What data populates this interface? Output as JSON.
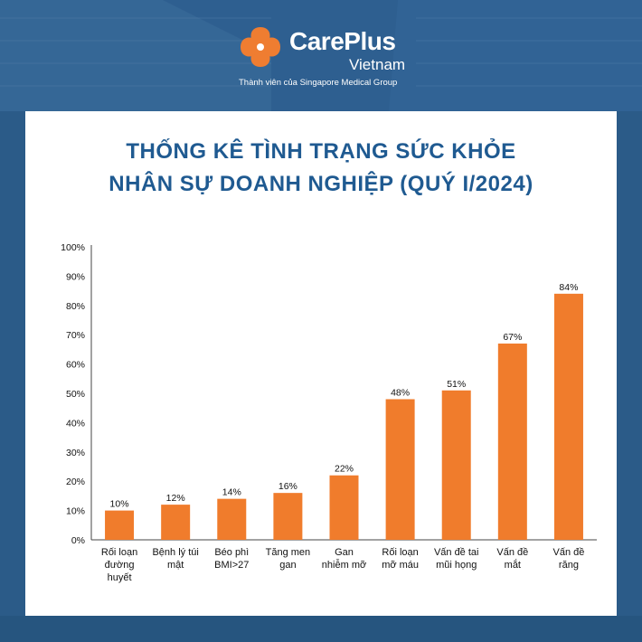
{
  "logo": {
    "brand": "CarePlus",
    "brand_sub": "Vietnam",
    "tagline": "Thành viên của Singapore Medical Group",
    "icon": "careplus-flower-logo-icon",
    "brand_color": "#ef7d31"
  },
  "title_lines": [
    "THỐNG KÊ TÌNH TRẠNG SỨC KHỎE",
    "NHÂN SỰ DOANH NGHIỆP (QUÝ I/2024)"
  ],
  "chart_data": {
    "type": "bar",
    "title": "THỐNG KÊ TÌNH TRẠNG SỨC KHỎE NHÂN SỰ DOANH NGHIỆP (QUÝ I/2024)",
    "categories": [
      [
        "Rối loạn",
        "đường",
        "huyết"
      ],
      [
        "Bệnh lý túi",
        "mật"
      ],
      [
        "Béo phì",
        "BMI>27"
      ],
      [
        "Tăng men",
        "gan"
      ],
      [
        "Gan",
        "nhiễm mỡ"
      ],
      [
        "Rối loạn",
        "mỡ máu"
      ],
      [
        "Vấn đề tai",
        "mũi họng"
      ],
      [
        "Vấn đề",
        "mắt"
      ],
      [
        "Vấn đề",
        "răng"
      ]
    ],
    "values": [
      10,
      12,
      14,
      16,
      22,
      48,
      51,
      67,
      84
    ],
    "value_labels": [
      "10%",
      "12%",
      "14%",
      "16%",
      "22%",
      "48%",
      "51%",
      "67%",
      "84%"
    ],
    "yticks": [
      "0%",
      "10%",
      "20%",
      "30%",
      "40%",
      "50%",
      "60%",
      "70%",
      "80%",
      "90%",
      "100%"
    ],
    "ylim": [
      0,
      100
    ],
    "xlabel": "",
    "ylabel": "",
    "grid": false,
    "legend": "none",
    "bar_color": "#f07c2c"
  }
}
